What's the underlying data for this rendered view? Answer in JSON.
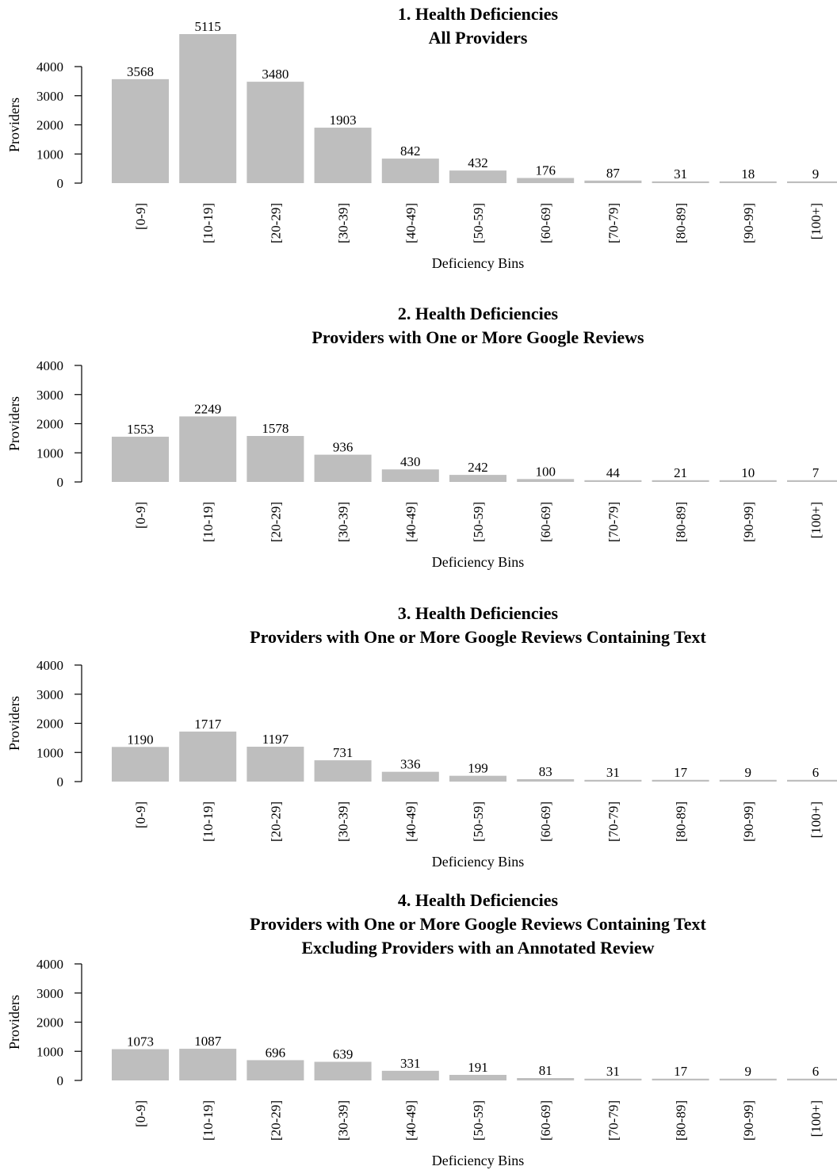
{
  "chart_data": [
    {
      "type": "bar",
      "title": "1. Health Deficiencies",
      "subtitle": [
        "All Providers"
      ],
      "xlabel": "Deficiency Bins",
      "ylabel": "Providers",
      "ylim": [
        0,
        4000
      ],
      "yticks": [
        "0",
        "1000",
        "2000",
        "3000",
        "4000"
      ],
      "categories": [
        "[0-9]",
        "[10-19]",
        "[20-29]",
        "[30-39]",
        "[40-49]",
        "[50-59]",
        "[60-69]",
        "[70-79]",
        "[80-89]",
        "[90-99]",
        "[100+]"
      ],
      "values": [
        3568,
        5115,
        3480,
        1903,
        842,
        432,
        176,
        87,
        31,
        18,
        9
      ],
      "value_labels": [
        "3568",
        "5115",
        "3480",
        "1903",
        "842",
        "432",
        "176",
        "87",
        "31",
        "18",
        "9"
      ],
      "bar_color": "#bebebe",
      "grid": false
    },
    {
      "type": "bar",
      "title": "2. Health Deficiencies",
      "subtitle": [
        "Providers with One or More Google Reviews"
      ],
      "xlabel": "Deficiency Bins",
      "ylabel": "Providers",
      "ylim": [
        0,
        4000
      ],
      "yticks": [
        "0",
        "1000",
        "2000",
        "3000",
        "4000"
      ],
      "categories": [
        "[0-9]",
        "[10-19]",
        "[20-29]",
        "[30-39]",
        "[40-49]",
        "[50-59]",
        "[60-69]",
        "[70-79]",
        "[80-89]",
        "[90-99]",
        "[100+]"
      ],
      "values": [
        1553,
        2249,
        1578,
        936,
        430,
        242,
        100,
        44,
        21,
        10,
        7
      ],
      "value_labels": [
        "1553",
        "2249",
        "1578",
        "936",
        "430",
        "242",
        "100",
        "44",
        "21",
        "10",
        "7"
      ],
      "bar_color": "#bebebe",
      "grid": false
    },
    {
      "type": "bar",
      "title": "3. Health Deficiencies",
      "subtitle": [
        "Providers with One or More Google Reviews Containing Text"
      ],
      "xlabel": "Deficiency Bins",
      "ylabel": "Providers",
      "ylim": [
        0,
        4000
      ],
      "yticks": [
        "0",
        "1000",
        "2000",
        "3000",
        "4000"
      ],
      "categories": [
        "[0-9]",
        "[10-19]",
        "[20-29]",
        "[30-39]",
        "[40-49]",
        "[50-59]",
        "[60-69]",
        "[70-79]",
        "[80-89]",
        "[90-99]",
        "[100+]"
      ],
      "values": [
        1190,
        1717,
        1197,
        731,
        336,
        199,
        83,
        31,
        17,
        9,
        6
      ],
      "value_labels": [
        "1190",
        "1717",
        "1197",
        "731",
        "336",
        "199",
        "83",
        "31",
        "17",
        "9",
        "6"
      ],
      "bar_color": "#bebebe",
      "grid": false
    },
    {
      "type": "bar",
      "title": "4. Health Deficiencies",
      "subtitle": [
        "Providers with One or More Google Reviews Containing Text",
        "Excluding Providers with an Annotated Review"
      ],
      "xlabel": "Deficiency Bins",
      "ylabel": "Providers",
      "ylim": [
        0,
        4000
      ],
      "yticks": [
        "0",
        "1000",
        "2000",
        "3000",
        "4000"
      ],
      "categories": [
        "[0-9]",
        "[10-19]",
        "[20-29]",
        "[30-39]",
        "[40-49]",
        "[50-59]",
        "[60-69]",
        "[70-79]",
        "[80-89]",
        "[90-99]",
        "[100+]"
      ],
      "values": [
        1073,
        1087,
        696,
        639,
        331,
        191,
        81,
        31,
        17,
        9,
        6
      ],
      "value_labels": [
        "1073",
        "1087",
        "696",
        "639",
        "331",
        "191",
        "81",
        "31",
        "17",
        "9",
        "6"
      ],
      "bar_color": "#bebebe",
      "grid": false
    }
  ]
}
